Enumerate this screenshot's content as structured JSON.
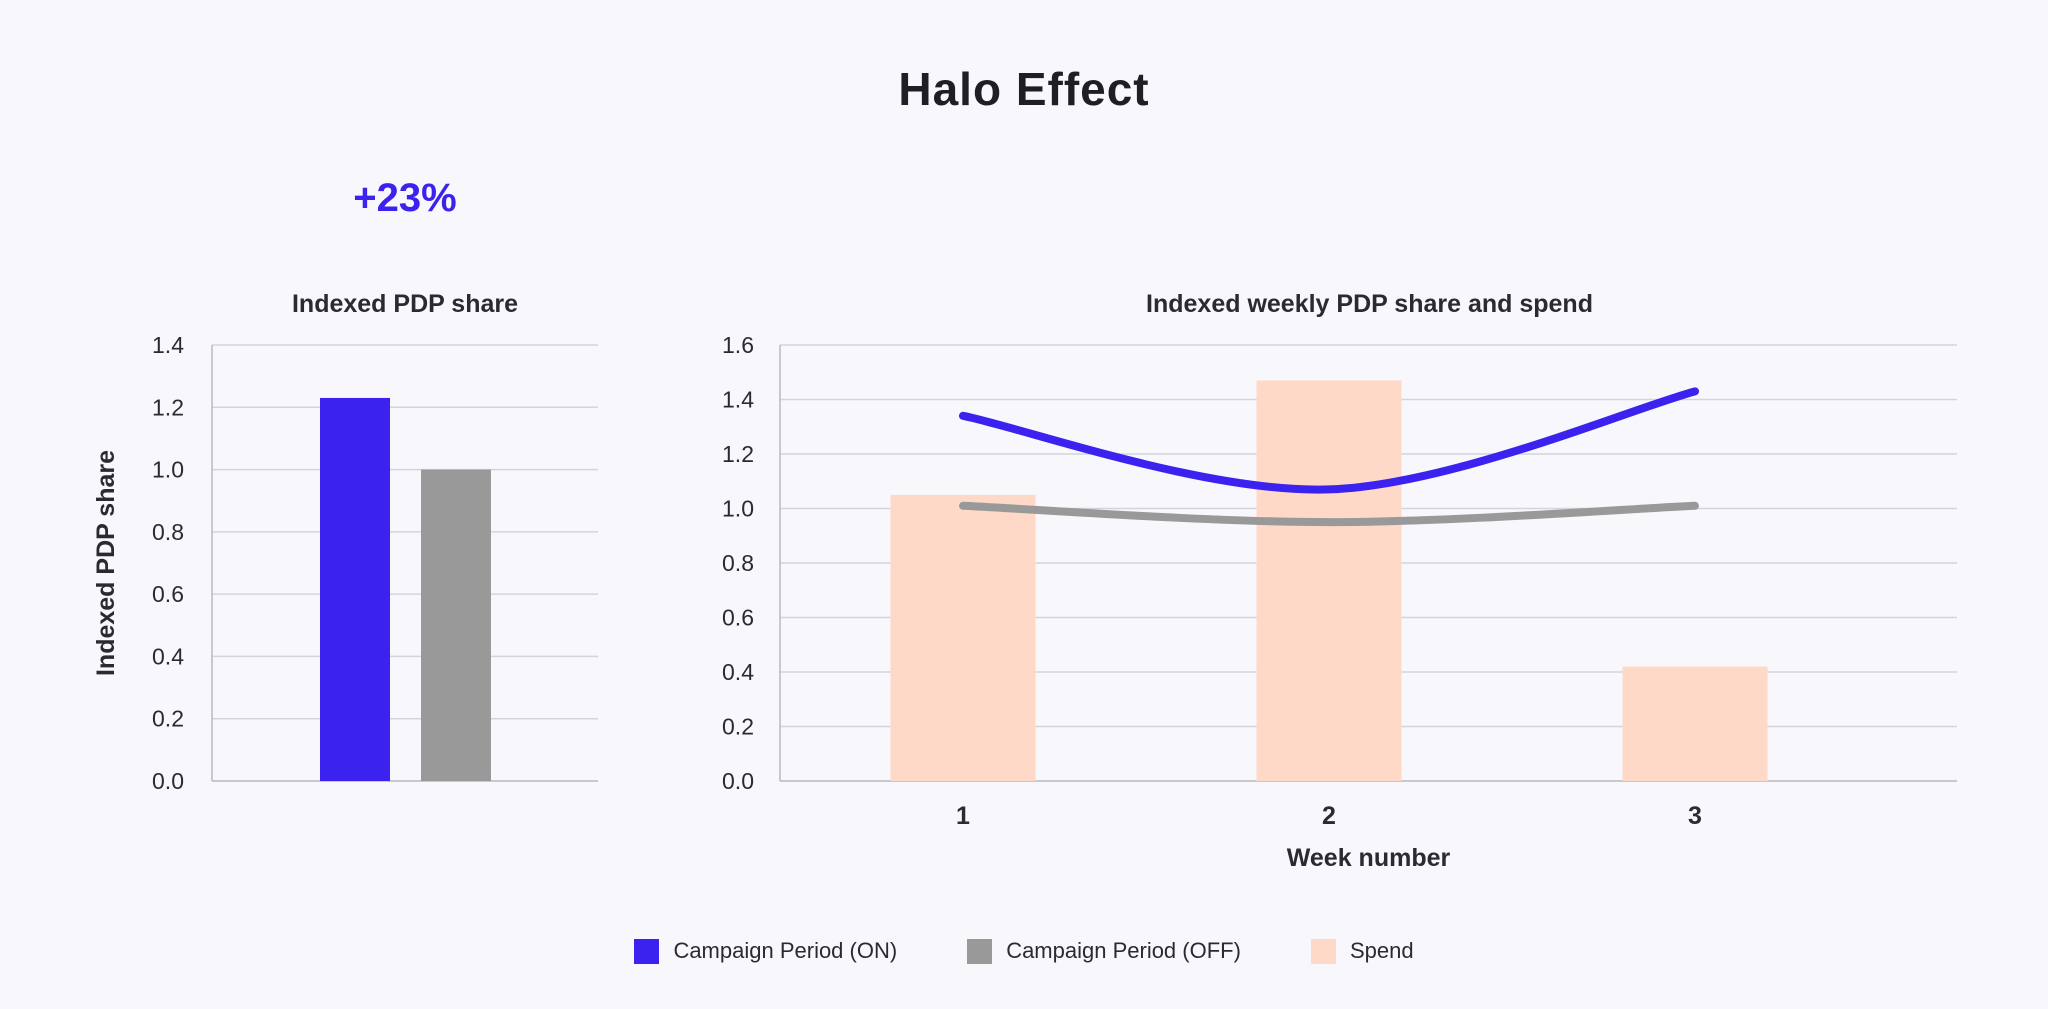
{
  "title": "Halo Effect",
  "lift_label": "+23%",
  "legend": [
    {
      "label": "Campaign Period (ON)",
      "color": "#3b22ee"
    },
    {
      "label": "Campaign Period (OFF)",
      "color": "#999999"
    },
    {
      "label": "Spend",
      "color": "#ffd9c7"
    }
  ],
  "chart_data": [
    {
      "type": "bar",
      "title": "Indexed PDP share",
      "ylabel": "Indexed PDP share",
      "xlabel": "",
      "ylim": [
        0,
        1.4
      ],
      "yticks": [
        "0.0",
        "0.2",
        "0.4",
        "0.6",
        "0.8",
        "1.0",
        "1.2",
        "1.4"
      ],
      "grid": true,
      "series": [
        {
          "name": "Campaign Period (ON)",
          "values": [
            1.23
          ],
          "color": "#3b22ee"
        },
        {
          "name": "Campaign Period (OFF)",
          "values": [
            1.0
          ],
          "color": "#999999"
        }
      ]
    },
    {
      "type": "line",
      "title": "Indexed weekly PDP share and spend",
      "xlabel": "Week number",
      "ylabel": "",
      "categories": [
        "1",
        "2",
        "3"
      ],
      "ylim": [
        0,
        1.6
      ],
      "yticks": [
        "0.0",
        "0.2",
        "0.4",
        "0.6",
        "0.8",
        "1.0",
        "1.2",
        "1.4",
        "1.6"
      ],
      "grid": true,
      "series": [
        {
          "name": "Spend",
          "kind": "bar",
          "values": [
            1.05,
            1.47,
            0.42
          ],
          "color": "#ffd9c7"
        },
        {
          "name": "Campaign Period (ON)",
          "kind": "line",
          "values": [
            1.34,
            1.07,
            1.43
          ],
          "color": "#3b22ee"
        },
        {
          "name": "Campaign Period (OFF)",
          "kind": "line",
          "values": [
            1.01,
            0.95,
            1.01
          ],
          "color": "#999999"
        }
      ]
    }
  ]
}
